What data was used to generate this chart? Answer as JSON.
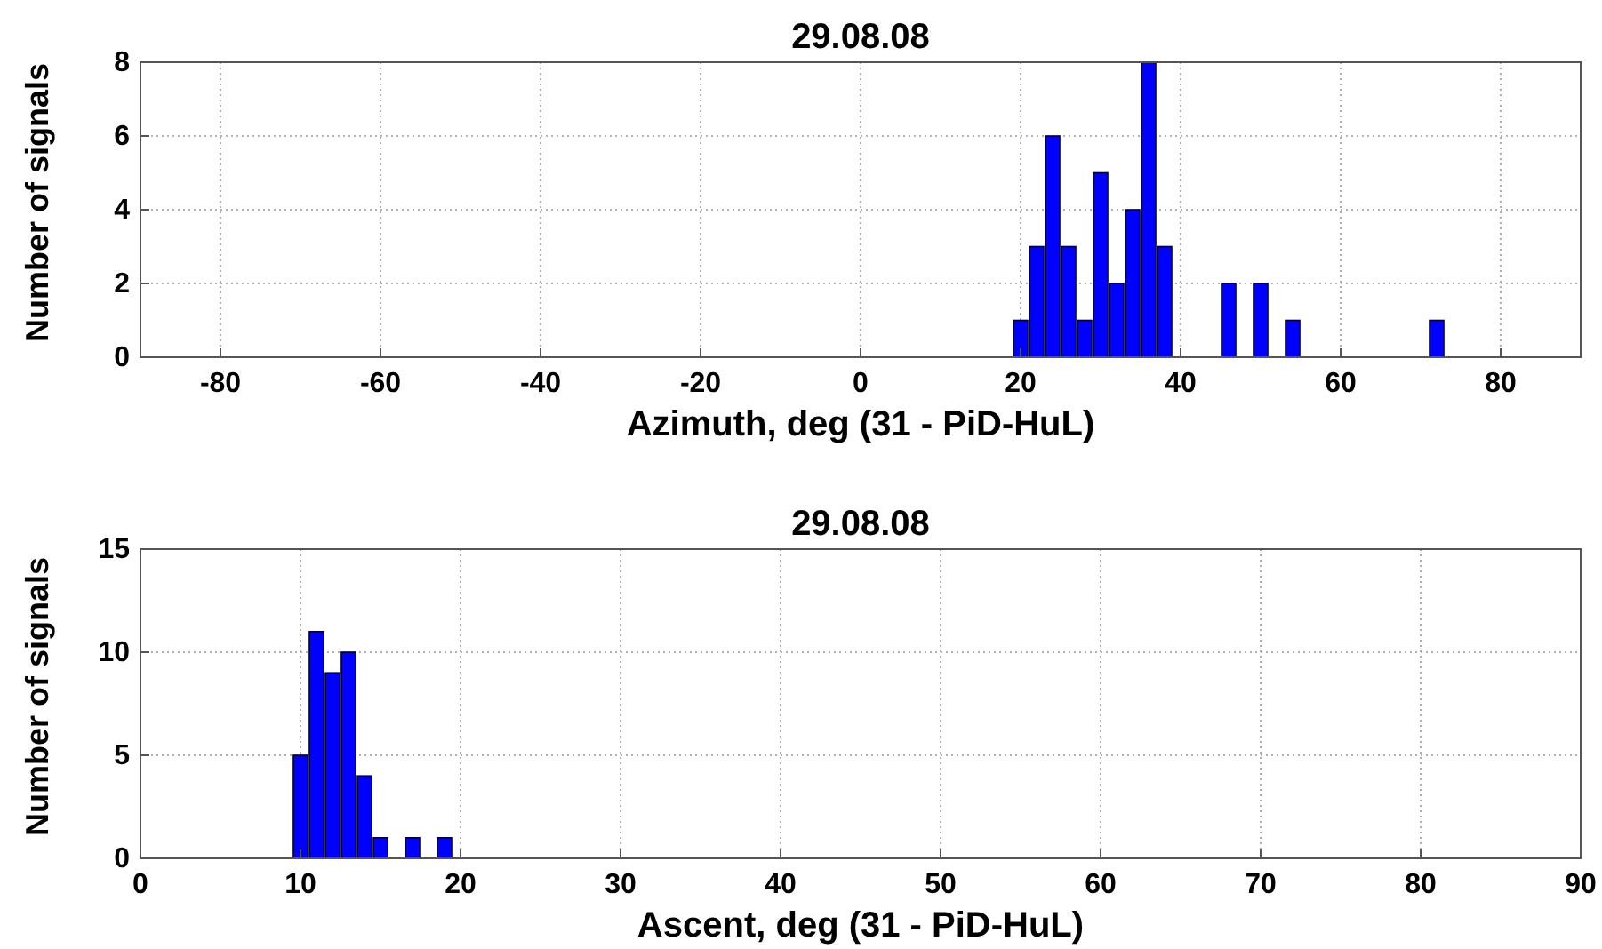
{
  "chart_data": [
    {
      "type": "histogram",
      "title": "29.08.08",
      "xlabel": "Azimuth, deg (31 - PiD-HuL)",
      "ylabel": "Number of signals",
      "bins": [
        19,
        21,
        23,
        25,
        27,
        29,
        31,
        33,
        35,
        37,
        39,
        41,
        43,
        45,
        47,
        49,
        51,
        53,
        55,
        57,
        59,
        61,
        63,
        65,
        67,
        69,
        71,
        73
      ],
      "values": [
        1,
        3,
        6,
        3,
        1,
        5,
        2,
        4,
        8,
        3,
        0,
        0,
        0,
        2,
        0,
        2,
        0,
        1,
        0,
        0,
        0,
        0,
        0,
        0,
        0,
        0,
        1
      ],
      "color": "#0000ff",
      "xlim": [
        -90,
        90
      ],
      "xticks": [
        -80,
        -60,
        -40,
        -20,
        0,
        20,
        40,
        60,
        80
      ],
      "ylim": [
        0,
        8
      ],
      "yticks": [
        0,
        2,
        4,
        6,
        8
      ],
      "grid": true
    },
    {
      "type": "histogram",
      "title": "29.08.08",
      "xlabel": "Ascent, deg (31 - PiD-HuL)",
      "ylabel": "Number of signals",
      "bins": [
        9.5,
        10.5,
        11.5,
        12.5,
        13.5,
        14.5,
        15.5,
        16.5,
        17.5,
        18.5,
        19.5
      ],
      "values": [
        5,
        11,
        9,
        10,
        4,
        1,
        0,
        1,
        0,
        1
      ],
      "color": "#0000ff",
      "xlim": [
        0,
        90
      ],
      "xticks": [
        0,
        10,
        20,
        30,
        40,
        50,
        60,
        70,
        80,
        90
      ],
      "ylim": [
        0,
        15
      ],
      "yticks": [
        0,
        5,
        10,
        15
      ],
      "grid": true
    }
  ]
}
